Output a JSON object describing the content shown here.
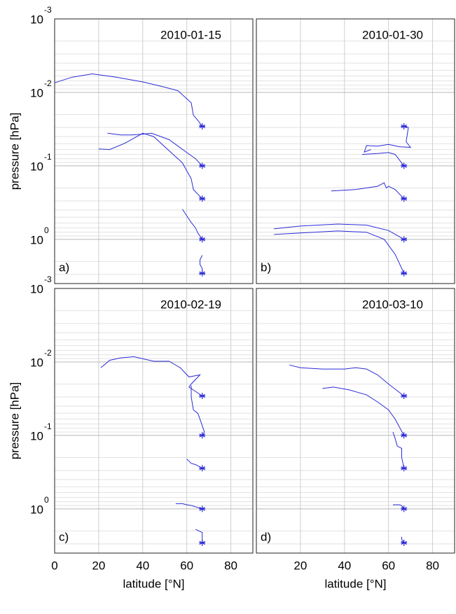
{
  "chart_data": [
    {
      "type": "line",
      "title": "2010-01-15",
      "panel_label": "a)",
      "ylabel": "pressure [hPa]",
      "xlim": [
        0,
        90
      ],
      "xticks": [
        0,
        20,
        40,
        60,
        80
      ],
      "show_xtick_labels": false,
      "ylim": [
        0.001,
        4
      ],
      "y_log": true,
      "y_inverted": true,
      "grid": true,
      "minor_grid": true,
      "end_marker": true,
      "yticks": [
        {
          "value": 0.001,
          "label": "10",
          "exponent": "-3"
        },
        {
          "value": 0.01,
          "label": "10",
          "exponent": "-2"
        },
        {
          "value": 0.1,
          "label": "10",
          "exponent": "-1"
        },
        {
          "value": 1,
          "label": "10",
          "exponent": "0"
        }
      ],
      "series": [
        {
          "color": "#2b2bd6",
          "x": [
            0,
            8,
            17,
            28,
            40,
            50,
            56,
            62,
            63,
            65,
            67
          ],
          "values": [
            0.0074,
            0.0062,
            0.0056,
            0.0062,
            0.0072,
            0.0085,
            0.0095,
            0.0139,
            0.0205,
            0.024,
            0.029
          ]
        },
        {
          "color": "#2b2bd6",
          "x": [
            24,
            30,
            35,
            40,
            44,
            52,
            60,
            64,
            67
          ],
          "values": [
            0.036,
            0.038,
            0.038,
            0.037,
            0.036,
            0.044,
            0.066,
            0.08,
            0.1
          ]
        },
        {
          "color": "#2b2bd6",
          "x": [
            20,
            25,
            32,
            40,
            45,
            50,
            58,
            62,
            63,
            67
          ],
          "values": [
            0.059,
            0.06,
            0.049,
            0.036,
            0.04,
            0.055,
            0.091,
            0.15,
            0.21,
            0.28
          ]
        },
        {
          "color": "#2b2bd6",
          "x": [
            58,
            60,
            62,
            64,
            65,
            67
          ],
          "values": [
            0.39,
            0.48,
            0.59,
            0.7,
            0.82,
            1.0
          ]
        },
        {
          "color": "#2b2bd6",
          "x": [
            67,
            66,
            66,
            67,
            67
          ],
          "values": [
            1.65,
            1.9,
            2.2,
            2.5,
            2.9
          ]
        }
      ]
    },
    {
      "type": "line",
      "title": "2010-01-30",
      "panel_label": "b)",
      "xlim": [
        0,
        90
      ],
      "xticks": [
        0,
        20,
        40,
        60,
        80
      ],
      "show_xtick_labels": false,
      "ylim": [
        0.001,
        4
      ],
      "y_log": true,
      "y_inverted": true,
      "grid": true,
      "minor_grid": true,
      "end_marker": true,
      "yticks": [
        0.001,
        0.01,
        0.1,
        1
      ],
      "show_ytick_labels": false,
      "series": [
        {
          "color": "#2b2bd6",
          "x": [
            52,
            49,
            50,
            55,
            60,
            65,
            70,
            68,
            69,
            67
          ],
          "values": [
            0.06,
            0.065,
            0.053,
            0.054,
            0.051,
            0.055,
            0.056,
            0.047,
            0.03,
            0.029
          ]
        },
        {
          "color": "#2b2bd6",
          "x": [
            48,
            55,
            60,
            63,
            67
          ],
          "values": [
            0.07,
            0.068,
            0.066,
            0.07,
            0.1
          ]
        },
        {
          "color": "#2b2bd6",
          "x": [
            34,
            45,
            55,
            58,
            59,
            60,
            63,
            67
          ],
          "values": [
            0.22,
            0.21,
            0.19,
            0.17,
            0.2,
            0.19,
            0.21,
            0.28
          ]
        },
        {
          "color": "#2b2bd6",
          "x": [
            8,
            20,
            37,
            50,
            60,
            67
          ],
          "values": [
            0.72,
            0.66,
            0.62,
            0.64,
            0.76,
            1.0
          ]
        },
        {
          "color": "#2b2bd6",
          "x": [
            8,
            20,
            37,
            50,
            58,
            63,
            67
          ],
          "values": [
            0.86,
            0.82,
            0.77,
            0.8,
            1.0,
            1.6,
            2.9
          ]
        }
      ]
    },
    {
      "type": "line",
      "title": "2010-02-19",
      "panel_label": "c)",
      "ylabel": "pressure [hPa]",
      "xlabel": "latitude [°N]",
      "xlim": [
        0,
        90
      ],
      "xticks": [
        0,
        20,
        40,
        60,
        80
      ],
      "ylim": [
        0.001,
        4
      ],
      "y_log": true,
      "y_inverted": true,
      "grid": true,
      "minor_grid": true,
      "end_marker": true,
      "yticks": [
        {
          "value": 0.001,
          "label": "10",
          "exponent": "-3"
        },
        {
          "value": 0.01,
          "label": "10",
          "exponent": "-2"
        },
        {
          "value": 0.1,
          "label": "10",
          "exponent": "-1"
        },
        {
          "value": 1,
          "label": "10",
          "exponent": "0"
        }
      ],
      "series": [
        {
          "color": "#2b2bd6",
          "x": [
            21,
            25,
            30,
            36,
            45,
            52,
            57,
            61,
            66,
            62,
            61,
            67
          ],
          "values": [
            0.012,
            0.0095,
            0.0088,
            0.0085,
            0.0098,
            0.0098,
            0.012,
            0.016,
            0.015,
            0.02,
            0.022,
            0.029
          ]
        },
        {
          "color": "#2b2bd6",
          "x": [
            62,
            62,
            63,
            65,
            66,
            68,
            67
          ],
          "values": [
            0.021,
            0.03,
            0.045,
            0.05,
            0.06,
            0.09,
            0.1
          ]
        },
        {
          "color": "#2b2bd6",
          "x": [
            60,
            62,
            64,
            67
          ],
          "values": [
            0.21,
            0.24,
            0.25,
            0.28
          ]
        },
        {
          "color": "#2b2bd6",
          "x": [
            55,
            58,
            60,
            62,
            67
          ],
          "values": [
            0.85,
            0.85,
            0.88,
            0.9,
            1.0
          ]
        },
        {
          "color": "#2b2bd6",
          "x": [
            64,
            67,
            67,
            67
          ],
          "values": [
            1.9,
            2.1,
            2.5,
            2.9
          ]
        }
      ]
    },
    {
      "type": "line",
      "title": "2010-03-10",
      "panel_label": "d)",
      "xlabel": "latitude [°N]",
      "xlim": [
        0,
        90
      ],
      "xticks": [
        20,
        40,
        60,
        80
      ],
      "ylim": [
        0.001,
        4
      ],
      "y_log": true,
      "y_inverted": true,
      "grid": true,
      "minor_grid": true,
      "end_marker": true,
      "yticks": [
        0.001,
        0.01,
        0.1,
        1
      ],
      "show_ytick_labels": false,
      "series": [
        {
          "color": "#2b2bd6",
          "x": [
            15,
            20,
            30,
            40,
            45,
            50,
            55,
            60,
            67
          ],
          "values": [
            0.011,
            0.012,
            0.0125,
            0.0125,
            0.012,
            0.0125,
            0.015,
            0.02,
            0.029
          ]
        },
        {
          "color": "#2b2bd6",
          "x": [
            30,
            35,
            42,
            50,
            55,
            60,
            63,
            67
          ],
          "values": [
            0.023,
            0.022,
            0.024,
            0.028,
            0.035,
            0.045,
            0.06,
            0.1
          ]
        },
        {
          "color": "#2b2bd6",
          "x": [
            62,
            63,
            64,
            66,
            66,
            67
          ],
          "values": [
            0.09,
            0.11,
            0.14,
            0.15,
            0.2,
            0.28
          ]
        },
        {
          "color": "#2b2bd6",
          "x": [
            62,
            65,
            66,
            67
          ],
          "values": [
            0.88,
            0.88,
            0.9,
            1.0
          ]
        },
        {
          "color": "#2b2bd6",
          "x": [
            66,
            66,
            67
          ],
          "values": [
            2.4,
            2.6,
            2.9
          ]
        }
      ]
    }
  ]
}
